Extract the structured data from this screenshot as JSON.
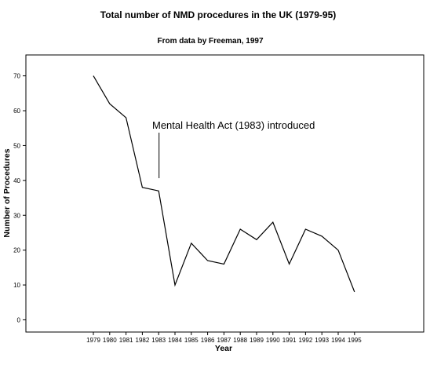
{
  "chart_data": {
    "type": "line",
    "title": "Total number of NMD procedures in the UK (1979-95)",
    "subtitle": "From data by Freeman, 1997",
    "xlabel": "Year",
    "ylabel": "Number of Procedures",
    "x": [
      "1979",
      "1980",
      "1981",
      "1982",
      "1983",
      "1984",
      "1985",
      "1986",
      "1987",
      "1988",
      "1989",
      "1990",
      "1991",
      "1992",
      "1993",
      "1994",
      "1995"
    ],
    "y": [
      70,
      62,
      58,
      38,
      37,
      10,
      22,
      17,
      16,
      26,
      23,
      28,
      16,
      26,
      24,
      20,
      8
    ],
    "y_ticks": [
      0,
      10,
      20,
      30,
      40,
      50,
      60,
      70
    ],
    "ylim": [
      -3.5,
      76
    ],
    "grid": false,
    "legend": "none",
    "annotation": {
      "text": "Mental Health Act (1983) introduced",
      "x": "1983"
    },
    "colors": {
      "line": "#000000",
      "axis": "#000000",
      "background": "#ffffff"
    }
  }
}
